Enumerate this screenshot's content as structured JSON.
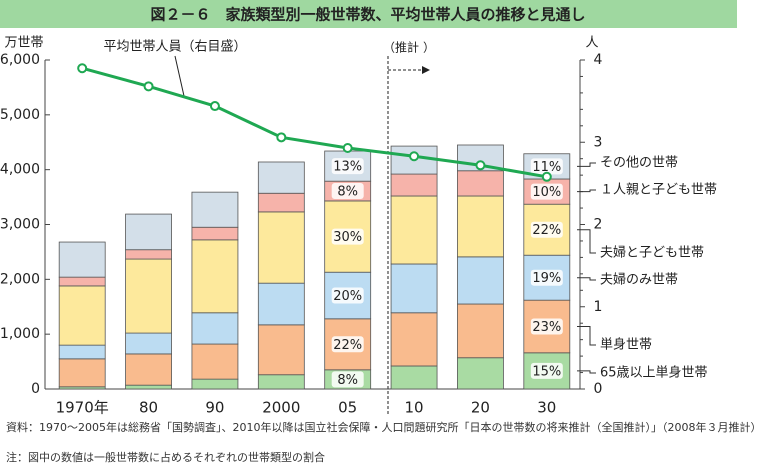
{
  "chart_data": {
    "type": "bar",
    "title": "図２－６　家族類型別一般世帯数、平均世帯人員の推移と見通し",
    "y_label": "万世帯",
    "y2_label": "人",
    "categories": [
      "1970年",
      "80",
      "90",
      "2000",
      "05",
      "10",
      "20",
      "30"
    ],
    "series": [
      {
        "name": "65歳以上単身世帯",
        "color": "#a9dba3",
        "values": [
          40,
          70,
          180,
          260,
          350,
          420,
          570,
          660
        ],
        "shares": [
          null,
          null,
          null,
          null,
          8,
          null,
          null,
          15
        ],
        "share_labels": [
          null,
          null,
          null,
          null,
          "8%",
          null,
          null,
          "15%"
        ]
      },
      {
        "name": "単身世帯",
        "color": "#f9bb8e",
        "values": [
          510,
          570,
          640,
          910,
          930,
          970,
          980,
          960
        ],
        "shares": [
          null,
          null,
          null,
          null,
          22,
          null,
          null,
          23
        ],
        "share_labels": [
          null,
          null,
          null,
          null,
          "22%",
          null,
          null,
          "23%"
        ]
      },
      {
        "name": "夫婦のみ世帯",
        "color": "#bcdcf2",
        "values": [
          250,
          380,
          570,
          760,
          850,
          890,
          860,
          820
        ],
        "shares": [
          null,
          null,
          null,
          null,
          20,
          null,
          null,
          19
        ],
        "share_labels": [
          null,
          null,
          null,
          null,
          "20%",
          null,
          null,
          "19%"
        ]
      },
      {
        "name": "夫婦と子ども世帯",
        "color": "#fde99c",
        "values": [
          1080,
          1350,
          1330,
          1300,
          1300,
          1240,
          1110,
          930
        ],
        "shares": [
          null,
          null,
          null,
          null,
          30,
          null,
          null,
          22
        ],
        "share_labels": [
          null,
          null,
          null,
          null,
          "30%",
          null,
          null,
          "22%"
        ]
      },
      {
        "name": "１人親と子ども世帯",
        "color": "#f6b3aa",
        "values": [
          160,
          170,
          230,
          340,
          360,
          400,
          460,
          460
        ],
        "shares": [
          null,
          null,
          null,
          null,
          8,
          null,
          null,
          10
        ],
        "share_labels": [
          null,
          null,
          null,
          null,
          "8%",
          null,
          null,
          "10%"
        ]
      },
      {
        "name": "その他の世帯",
        "color": "#d3dfe9",
        "values": [
          640,
          650,
          640,
          570,
          550,
          510,
          470,
          460
        ],
        "shares": [
          null,
          null,
          null,
          null,
          13,
          null,
          null,
          11
        ],
        "share_labels": [
          null,
          null,
          null,
          null,
          "13%",
          null,
          null,
          "11%"
        ]
      }
    ],
    "line": {
      "name": "平均世帯人員（右目盛）",
      "color": "#1fa852",
      "axis": "y2",
      "values": [
        3.9,
        3.68,
        3.44,
        3.06,
        2.93,
        2.83,
        2.72,
        2.58
      ]
    },
    "projection_label": "（推計",
    "ylim": [
      0,
      6000
    ],
    "yticks": [
      0,
      {
        "value": 1000,
        "label": "1,000"
      },
      {
        "value": 2000,
        "label": "2,000"
      },
      {
        "value": 3000,
        "label": "3,000"
      },
      {
        "value": 4000,
        "label": "4,000"
      },
      {
        "value": 5000,
        "label": "5,000"
      },
      {
        "value": 6000,
        "label": "6,000"
      }
    ],
    "y2lim": [
      0,
      4
    ],
    "y2ticks": [
      0,
      1,
      2,
      3,
      4
    ],
    "notes": [
      "資料：1970～2005年は総務省「国勢調査」、2010年以降は国立社会保障・人口問題研究所「日本の世帯数の将来推計（全国推計）」（2008年３月推計）",
      "注：図中の数値は一般世帯数に占めるそれぞれの世帯類型の割合"
    ]
  }
}
